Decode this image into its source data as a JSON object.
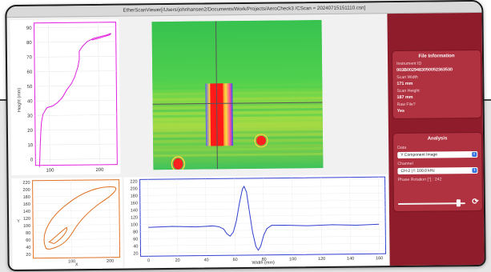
{
  "window": {
    "title": "EtherScanViewer[/Users/johnhansen2/Documents/Work/Projects/AeroCheck3 /CScan = 20240715151110.csn]"
  },
  "height_profile": {
    "y_label": "Height (mm)",
    "y_ticks": [
      "90",
      "80",
      "70",
      "60",
      "50",
      "40",
      "30",
      "20",
      "10",
      "0"
    ],
    "x_ticks": [
      "100",
      "200"
    ],
    "line_color": "#e020e0"
  },
  "cscan_image": {
    "description_icon": "heatmap-icon",
    "cursor_color": "#555555"
  },
  "lissajous": {
    "x_label": "X",
    "y_label": "Y",
    "y_ticks": [
      "220",
      "200",
      "180",
      "160",
      "140",
      "120",
      "100",
      "80",
      "60",
      "40",
      "20"
    ],
    "x_ticks": [
      "100",
      "200"
    ],
    "line_color": "#e07020"
  },
  "width_profile": {
    "x_label": "Width (mm)",
    "y_ticks": [
      "220",
      "200",
      "180",
      "160",
      "140",
      "120",
      "100",
      "80",
      "60",
      "40",
      "20"
    ],
    "x_ticks": [
      "0",
      "20",
      "40",
      "60",
      "80",
      "100",
      "120",
      "140",
      "160"
    ],
    "line_color": "#3040d0"
  },
  "file_info": {
    "title": "File Information",
    "instrument_id_label": "Instrument ID",
    "instrument_id": "003B0029483050052363530",
    "scan_width_label": "Scan Width",
    "scan_width": "171 mm",
    "scan_height_label": "Scan Height",
    "scan_height": "187 mm",
    "raw_file_label": "Raw File?",
    "raw_file": "Yes"
  },
  "analysis": {
    "title": "Analysis",
    "data_label": "Data",
    "data_value": "Y Component Image",
    "channel_label": "Channel",
    "channel_value": "CH-2 | f: 100.0 kHz",
    "phase_label": "Phase Rotation [°] : 242",
    "phase_rotation": 242,
    "reset_icon": "reset-icon"
  },
  "theme": {
    "sidebar": "#8e1c2b",
    "card": "#b0313f"
  }
}
